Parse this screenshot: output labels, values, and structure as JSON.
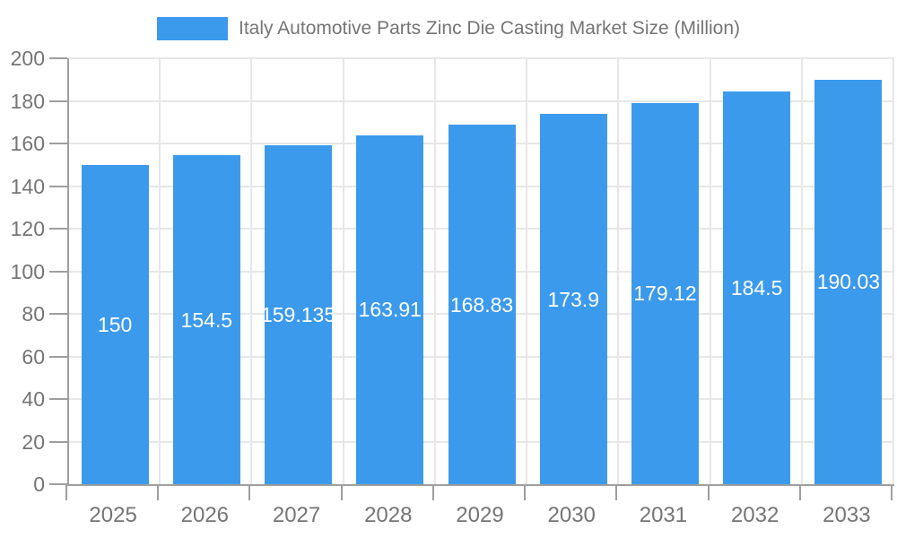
{
  "chart_data": {
    "type": "bar",
    "title": "Italy Automotive Parts Zinc Die Casting Market Size (Million)",
    "categories": [
      "2025",
      "2026",
      "2027",
      "2028",
      "2029",
      "2030",
      "2031",
      "2032",
      "2033"
    ],
    "values": [
      150,
      154.5,
      159.135,
      163.91,
      168.83,
      173.9,
      179.12,
      184.5,
      190.03
    ],
    "value_labels": [
      "150",
      "154.5",
      "159.135",
      "163.91",
      "168.83",
      "173.9",
      "179.12",
      "184.5",
      "190.03"
    ],
    "xlabel": "",
    "ylabel": "",
    "ylim": [
      0,
      200
    ],
    "ytick_step": 20,
    "grid": true,
    "legend_position": "top",
    "colors": {
      "bar": "#3C9AEC",
      "grid": "#E7E7E7",
      "axis": "#9E9E9E",
      "axis_text": "#757575",
      "bar_label_text": "#FFFFFF",
      "background": "#FFFFFF"
    }
  }
}
